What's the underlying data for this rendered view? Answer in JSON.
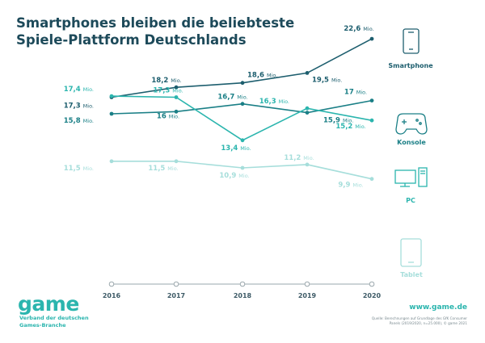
{
  "chart_data": {
    "type": "line",
    "title_line1": "Smartphones bleiben die beliebteste",
    "title_line2": "Spiele-Plattform Deutschlands",
    "categories": [
      "2016",
      "2017",
      "2018",
      "2019",
      "2020"
    ],
    "unit": "Mio.",
    "series": [
      {
        "name": "Smartphone",
        "color": "#1d5e6e",
        "values": [
          17.3,
          18.2,
          18.6,
          19.5,
          22.6
        ],
        "labels": [
          "17,3",
          "18,2",
          "18,6",
          "19,5",
          "22,6"
        ]
      },
      {
        "name": "Konsole",
        "color": "#1a7f86",
        "values": [
          15.8,
          16.0,
          16.7,
          15.9,
          17.0
        ],
        "labels": [
          "15,8",
          "16",
          "16,7",
          "15,9",
          "17"
        ]
      },
      {
        "name": "PC",
        "color": "#2bb5ae",
        "values": [
          17.4,
          17.3,
          13.4,
          16.3,
          15.2
        ],
        "labels": [
          "17,4",
          "17,3",
          "13,4",
          "16,3",
          "15,2"
        ]
      },
      {
        "name": "Tablet",
        "color": "#a6dedb",
        "values": [
          11.5,
          11.5,
          10.9,
          11.2,
          9.9
        ],
        "labels": [
          "11,5",
          "11,5",
          "10,9",
          "11,2",
          "9,9"
        ]
      }
    ]
  },
  "footer": {
    "logo": "game",
    "tagline_line1": "Verband der deutschen",
    "tagline_line2": "Games-Branche",
    "url": "www.game.de",
    "source_line1": "Quelle: Berechnungen auf Grundlage des GfK Consumer",
    "source_line2": "Panels (2019/2020, n=25.000), © game 2021"
  }
}
